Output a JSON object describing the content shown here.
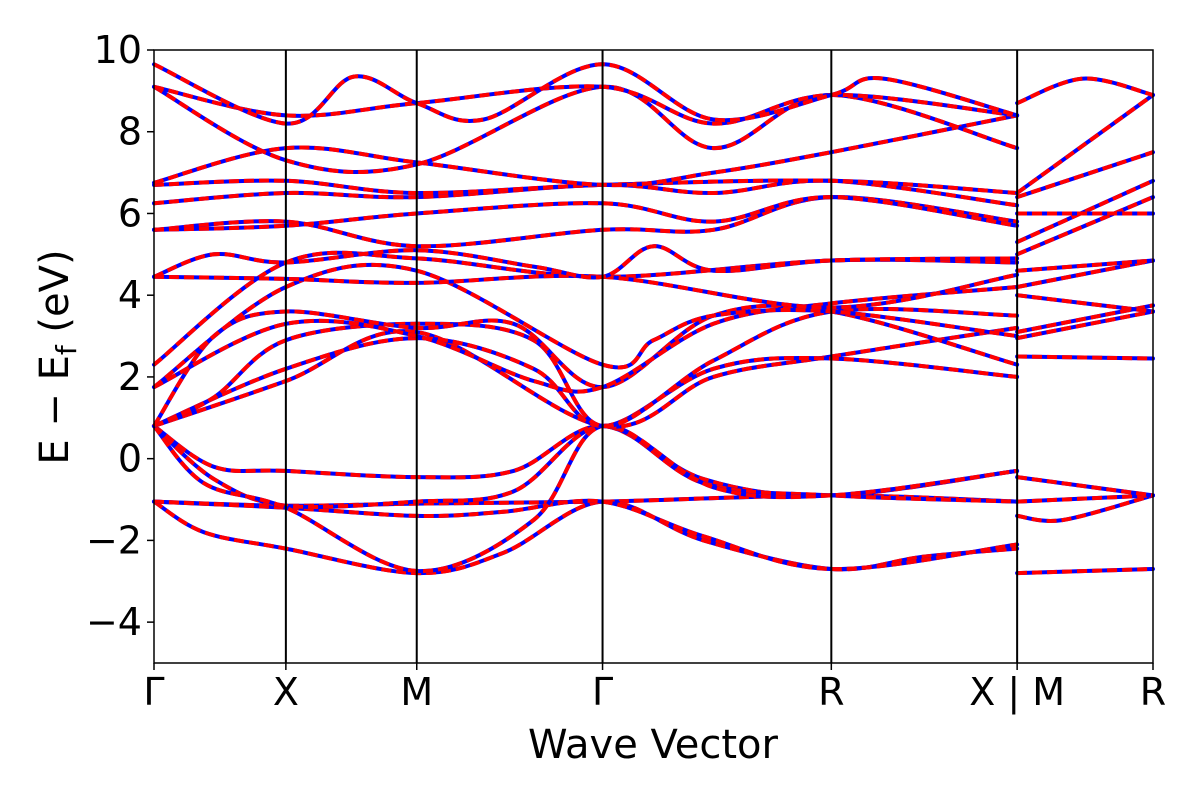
{
  "chart_data": {
    "type": "line",
    "xlabel": "Wave Vector",
    "ylabel": "E − E",
    "ylabel_sub": "f",
    "ylabel_unit": " (eV)",
    "ylim": [
      -5,
      10
    ],
    "yticks": [
      -4,
      -2,
      0,
      2,
      4,
      6,
      8,
      10
    ],
    "ytick_labels": [
      "−4",
      "−2",
      "0",
      "2",
      "4",
      "6",
      "8",
      "10"
    ],
    "xlim": [
      0,
      1
    ],
    "kpoints": [
      {
        "label": "Γ",
        "x": 0.0
      },
      {
        "label": "X",
        "x": 0.132
      },
      {
        "label": "M",
        "x": 0.263
      },
      {
        "label": "Γ",
        "x": 0.449
      },
      {
        "label": "R",
        "x": 0.678
      },
      {
        "label": "X | M",
        "x": 0.864
      },
      {
        "label": "R",
        "x": 1.0
      }
    ],
    "line_colors": {
      "up": "#ff0000",
      "down": "#0000ff"
    },
    "grid": false,
    "bands": [
      [
        [
          0,
          -1.05
        ],
        [
          0.132,
          -1.15
        ],
        [
          0.263,
          -1.1
        ],
        [
          0.449,
          -1.05
        ],
        [
          0.678,
          -0.9
        ],
        [
          0.864,
          -1.05
        ]
      ],
      [
        [
          0,
          -1.05
        ],
        [
          0.05,
          -1.8
        ],
        [
          0.132,
          -2.2
        ],
        [
          0.263,
          -2.8
        ],
        [
          0.35,
          -2.3
        ],
        [
          0.449,
          -1.05
        ],
        [
          0.55,
          -2.0
        ],
        [
          0.678,
          -2.7
        ],
        [
          0.77,
          -2.4
        ],
        [
          0.864,
          -2.2
        ]
      ],
      [
        [
          0,
          -1.05
        ],
        [
          0.132,
          -1.2
        ],
        [
          0.263,
          -1.4
        ],
        [
          0.35,
          -1.3
        ],
        [
          0.449,
          -1.05
        ],
        [
          0.55,
          -1.9
        ],
        [
          0.678,
          -2.7
        ],
        [
          0.864,
          -2.1
        ]
      ],
      [
        [
          0,
          0.8
        ],
        [
          0.06,
          -0.2
        ],
        [
          0.132,
          -0.3
        ],
        [
          0.263,
          -0.45
        ],
        [
          0.36,
          -0.3
        ],
        [
          0.449,
          0.8
        ],
        [
          0.55,
          -0.5
        ],
        [
          0.678,
          -0.9
        ],
        [
          0.864,
          -0.3
        ]
      ],
      [
        [
          0,
          0.8
        ],
        [
          0.06,
          -0.5
        ],
        [
          0.132,
          -1.15
        ],
        [
          0.263,
          -1.05
        ],
        [
          0.36,
          -0.8
        ],
        [
          0.449,
          0.8
        ],
        [
          0.55,
          -0.6
        ],
        [
          0.678,
          -0.9
        ],
        [
          0.864,
          -1.05
        ]
      ],
      [
        [
          0,
          0.8
        ],
        [
          0.05,
          -0.6
        ],
        [
          0.132,
          -1.2
        ],
        [
          0.263,
          -2.75
        ],
        [
          0.38,
          -1.5
        ],
        [
          0.449,
          0.8
        ],
        [
          0.56,
          -0.7
        ],
        [
          0.678,
          -0.9
        ],
        [
          0.864,
          -0.3
        ]
      ],
      [
        [
          0,
          0.8
        ],
        [
          0.132,
          1.9
        ],
        [
          0.263,
          3.1
        ],
        [
          0.449,
          0.8
        ],
        [
          0.56,
          2.0
        ],
        [
          0.678,
          2.5
        ],
        [
          0.864,
          3.2
        ]
      ],
      [
        [
          0,
          0.8
        ],
        [
          0.132,
          2.2
        ],
        [
          0.263,
          2.95
        ],
        [
          0.38,
          2.2
        ],
        [
          0.449,
          0.8
        ],
        [
          0.56,
          2.2
        ],
        [
          0.678,
          2.45
        ],
        [
          0.864,
          2.0
        ]
      ],
      [
        [
          0,
          0.8
        ],
        [
          0.06,
          1.5
        ],
        [
          0.132,
          2.9
        ],
        [
          0.263,
          3.3
        ],
        [
          0.38,
          2.9
        ],
        [
          0.449,
          0.8
        ],
        [
          0.56,
          2.4
        ],
        [
          0.678,
          3.6
        ],
        [
          0.864,
          3.5
        ]
      ],
      [
        [
          0,
          0.8
        ],
        [
          0.06,
          3.0
        ],
        [
          0.132,
          3.6
        ],
        [
          0.263,
          3.2
        ],
        [
          0.36,
          3.3
        ],
        [
          0.449,
          1.75
        ],
        [
          0.56,
          3.5
        ],
        [
          0.678,
          3.6
        ],
        [
          0.864,
          2.3
        ]
      ],
      [
        [
          0,
          1.75
        ],
        [
          0.132,
          3.3
        ],
        [
          0.263,
          3.0
        ],
        [
          0.38,
          1.9
        ],
        [
          0.449,
          1.75
        ],
        [
          0.56,
          3.3
        ],
        [
          0.678,
          3.8
        ],
        [
          0.864,
          4.2
        ]
      ],
      [
        [
          0,
          1.75
        ],
        [
          0.132,
          4.2
        ],
        [
          0.263,
          4.6
        ],
        [
          0.449,
          2.3
        ],
        [
          0.5,
          2.9
        ],
        [
          0.56,
          3.5
        ],
        [
          0.678,
          3.6
        ],
        [
          0.864,
          3.0
        ]
      ],
      [
        [
          0,
          2.3
        ],
        [
          0.132,
          4.8
        ],
        [
          0.263,
          4.9
        ],
        [
          0.449,
          4.45
        ],
        [
          0.678,
          4.85
        ],
        [
          0.864,
          4.8
        ]
      ],
      [
        [
          0,
          4.45
        ],
        [
          0.132,
          4.4
        ],
        [
          0.263,
          4.3
        ],
        [
          0.449,
          4.45
        ],
        [
          0.678,
          3.7
        ],
        [
          0.864,
          4.5
        ]
      ],
      [
        [
          0,
          4.45
        ],
        [
          0.06,
          5.0
        ],
        [
          0.132,
          4.8
        ],
        [
          0.263,
          5.1
        ],
        [
          0.38,
          4.7
        ],
        [
          0.449,
          4.45
        ],
        [
          0.5,
          5.2
        ],
        [
          0.56,
          4.6
        ],
        [
          0.678,
          4.85
        ],
        [
          0.864,
          4.9
        ]
      ],
      [
        [
          0,
          5.6
        ],
        [
          0.132,
          5.8
        ],
        [
          0.263,
          5.2
        ],
        [
          0.449,
          5.6
        ],
        [
          0.56,
          5.6
        ],
        [
          0.678,
          6.4
        ],
        [
          0.864,
          5.8
        ]
      ],
      [
        [
          0,
          5.6
        ],
        [
          0.132,
          5.7
        ],
        [
          0.263,
          6.0
        ],
        [
          0.449,
          6.25
        ],
        [
          0.56,
          5.8
        ],
        [
          0.678,
          6.4
        ],
        [
          0.864,
          5.7
        ]
      ],
      [
        [
          0,
          6.25
        ],
        [
          0.132,
          6.5
        ],
        [
          0.263,
          6.4
        ],
        [
          0.449,
          6.7
        ],
        [
          0.56,
          6.5
        ],
        [
          0.678,
          6.8
        ],
        [
          0.864,
          6.2
        ]
      ],
      [
        [
          0,
          6.7
        ],
        [
          0.132,
          6.8
        ],
        [
          0.263,
          6.5
        ],
        [
          0.449,
          6.7
        ],
        [
          0.678,
          6.8
        ],
        [
          0.864,
          6.5
        ]
      ],
      [
        [
          0,
          6.75
        ],
        [
          0.132,
          7.6
        ],
        [
          0.263,
          7.25
        ],
        [
          0.449,
          6.7
        ],
        [
          0.56,
          7.0
        ],
        [
          0.678,
          7.5
        ],
        [
          0.864,
          8.4
        ]
      ],
      [
        [
          0,
          9.1
        ],
        [
          0.132,
          7.3
        ],
        [
          0.263,
          7.2
        ],
        [
          0.449,
          9.1
        ],
        [
          0.56,
          7.6
        ],
        [
          0.678,
          8.9
        ],
        [
          0.864,
          7.6
        ]
      ],
      [
        [
          0,
          9.1
        ],
        [
          0.132,
          8.4
        ],
        [
          0.263,
          8.7
        ],
        [
          0.449,
          9.1
        ],
        [
          0.56,
          8.2
        ],
        [
          0.678,
          8.9
        ],
        [
          0.864,
          8.4
        ]
      ],
      [
        [
          0,
          9.65
        ],
        [
          0.132,
          8.2
        ],
        [
          0.2,
          9.35
        ],
        [
          0.263,
          8.7
        ],
        [
          0.33,
          8.3
        ],
        [
          0.449,
          9.65
        ],
        [
          0.56,
          8.3
        ],
        [
          0.678,
          8.9
        ],
        [
          0.73,
          9.3
        ],
        [
          0.864,
          8.4
        ]
      ],
      [
        [
          0.864,
          -2.8
        ],
        [
          1.0,
          -2.7
        ]
      ],
      [
        [
          0.864,
          -1.4
        ],
        [
          0.91,
          -1.5
        ],
        [
          1.0,
          -0.9
        ]
      ],
      [
        [
          0.864,
          -1.05
        ],
        [
          1.0,
          -0.9
        ]
      ],
      [
        [
          0.864,
          -0.45
        ],
        [
          1.0,
          -0.9
        ]
      ],
      [
        [
          0.864,
          2.5
        ],
        [
          1.0,
          2.45
        ]
      ],
      [
        [
          0.864,
          2.95
        ],
        [
          1.0,
          3.6
        ]
      ],
      [
        [
          0.864,
          3.1
        ],
        [
          1.0,
          3.75
        ]
      ],
      [
        [
          0.864,
          4.0
        ],
        [
          1.0,
          3.6
        ]
      ],
      [
        [
          0.864,
          4.2
        ],
        [
          1.0,
          4.85
        ]
      ],
      [
        [
          0.864,
          4.6
        ],
        [
          1.0,
          4.85
        ]
      ],
      [
        [
          0.864,
          5.0
        ],
        [
          1.0,
          6.4
        ]
      ],
      [
        [
          0.864,
          5.3
        ],
        [
          1.0,
          6.8
        ]
      ],
      [
        [
          0.864,
          6.0
        ],
        [
          1.0,
          6.0
        ]
      ],
      [
        [
          0.864,
          6.4
        ],
        [
          1.0,
          7.5
        ]
      ],
      [
        [
          0.864,
          6.5
        ],
        [
          1.0,
          8.9
        ]
      ],
      [
        [
          0.864,
          8.7
        ],
        [
          0.93,
          9.3
        ],
        [
          1.0,
          8.9
        ]
      ]
    ]
  }
}
